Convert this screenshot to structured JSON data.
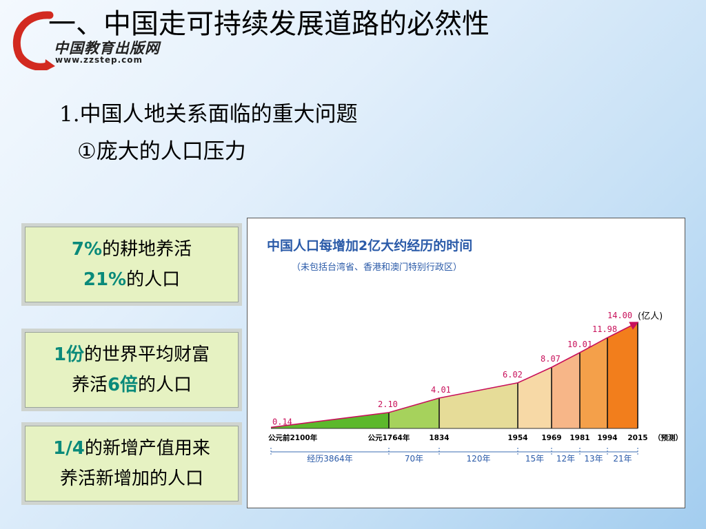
{
  "logo": {
    "text": "中国教育出版网",
    "url": "www.zzstep.com"
  },
  "title": "一、中国走可持续发展道路的必然性",
  "subtitle1": {
    "num": "1.",
    "text": "中国人地关系面临的重大问题"
  },
  "subtitle2": "①庞大的人口压力",
  "boxes": [
    {
      "line1_hl": "7%",
      "line1_rest": "的耕地养活",
      "line2_hl": "21%",
      "line2_rest": "的人口"
    },
    {
      "line1_hl": "1份",
      "line1_rest": "的世界平均财富",
      "line2_pre": "养活",
      "line2_hl": "6倍",
      "line2_rest": "的人口"
    },
    {
      "line1_hl": "1/4",
      "line1_rest": "的新增产值用来",
      "line2_rest": "养活新增加的人口"
    }
  ],
  "chart_data": {
    "type": "area",
    "title": "中国人口每增加2亿大约经历的时间",
    "subtitle": "（未包括台湾省、香港和澳门特别行政区）",
    "unit": "(亿人)",
    "forecast_label": "（预测）",
    "x": [
      "公元前2100年",
      "公元1764年",
      "1834",
      "1954",
      "1969",
      "1981",
      "1994",
      "2015"
    ],
    "values": [
      0.14,
      2.1,
      4.01,
      6.02,
      8.07,
      10.01,
      11.98,
      14.0
    ],
    "value_labels": [
      "0.14",
      "2.10",
      "4.01",
      "6.02",
      "8.07",
      "10.01",
      "11.98",
      "14.00"
    ],
    "spans": [
      "经历3864年",
      "70年",
      "120年",
      "15年",
      "12年",
      "13年",
      "21年"
    ],
    "colors": [
      "#5cb82c",
      "#a6d25c",
      "#e6dc98",
      "#f7d9a6",
      "#f7b688",
      "#f4a04a",
      "#f27e1c"
    ]
  }
}
